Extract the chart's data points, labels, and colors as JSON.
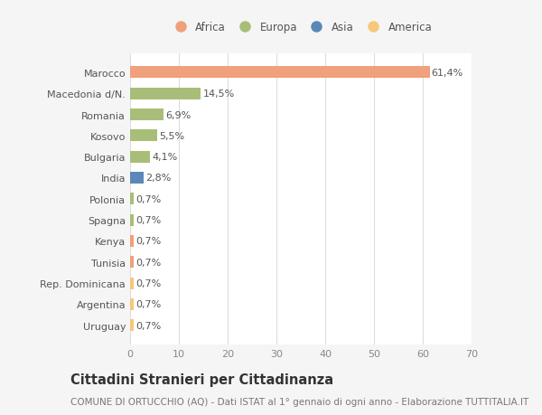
{
  "categories": [
    "Uruguay",
    "Argentina",
    "Rep. Dominicana",
    "Tunisia",
    "Kenya",
    "Spagna",
    "Polonia",
    "India",
    "Bulgaria",
    "Kosovo",
    "Romania",
    "Macedonia d/N.",
    "Marocco"
  ],
  "values": [
    0.7,
    0.7,
    0.7,
    0.7,
    0.7,
    0.7,
    0.7,
    2.8,
    4.1,
    5.5,
    6.9,
    14.5,
    61.4
  ],
  "colors": [
    "#F5C87A",
    "#F5C87A",
    "#F5C87A",
    "#F0A07A",
    "#F0A07A",
    "#A8BE78",
    "#A8BE78",
    "#5B88B8",
    "#A8BE78",
    "#A8BE78",
    "#A8BE78",
    "#A8BE78",
    "#F0A07A"
  ],
  "labels": [
    "0,7%",
    "0,7%",
    "0,7%",
    "0,7%",
    "0,7%",
    "0,7%",
    "0,7%",
    "2,8%",
    "4,1%",
    "5,5%",
    "6,9%",
    "14,5%",
    "61,4%"
  ],
  "legend": [
    {
      "label": "Africa",
      "color": "#F0A07A"
    },
    {
      "label": "Europa",
      "color": "#A8BE78"
    },
    {
      "label": "Asia",
      "color": "#5B88B8"
    },
    {
      "label": "America",
      "color": "#F5C87A"
    }
  ],
  "title": "Cittadini Stranieri per Cittadinanza",
  "subtitle": "COMUNE DI ORTUCCHIO (AQ) - Dati ISTAT al 1° gennaio di ogni anno - Elaborazione TUTTITALIA.IT",
  "xlim": [
    0,
    70
  ],
  "xticks": [
    0,
    10,
    20,
    30,
    40,
    50,
    60,
    70
  ],
  "background_color": "#f5f5f5",
  "plot_bg_color": "#ffffff",
  "grid_color": "#dddddd",
  "bar_height": 0.55,
  "label_fontsize": 8,
  "tick_fontsize": 8,
  "legend_fontsize": 8.5,
  "title_fontsize": 10.5,
  "subtitle_fontsize": 7.5
}
